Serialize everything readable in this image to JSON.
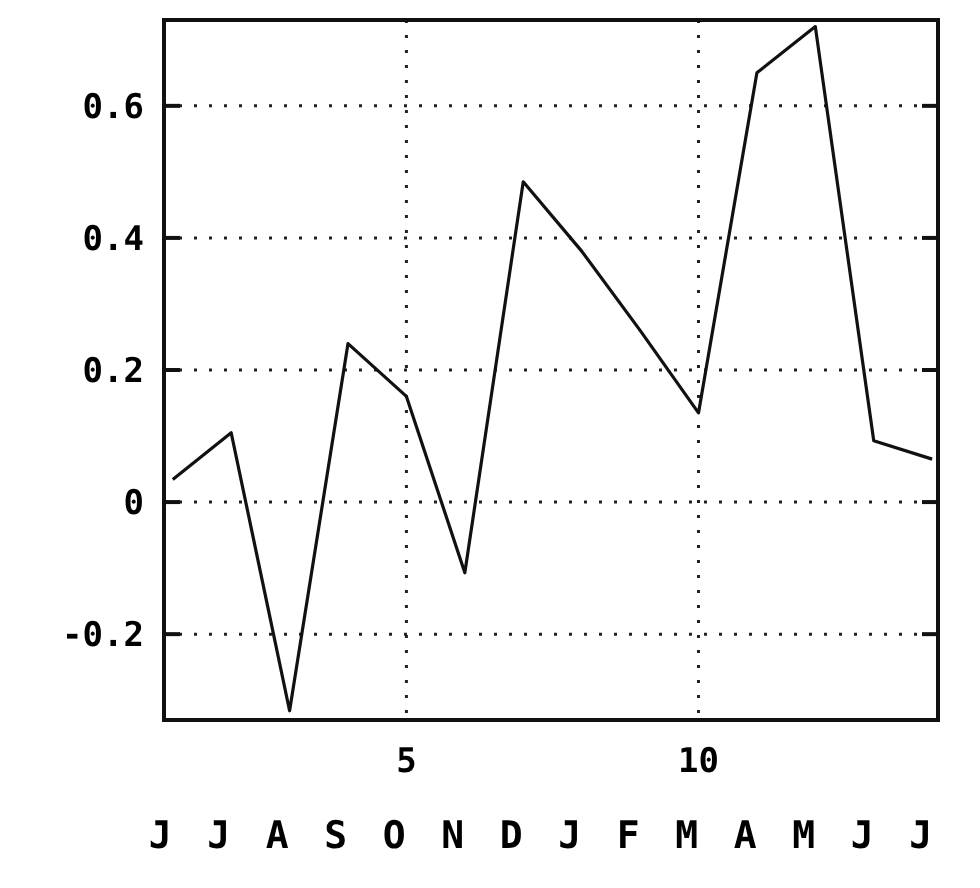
{
  "chart_data": {
    "type": "line",
    "x": [
      1,
      2,
      3,
      4,
      5,
      6,
      7,
      8,
      9,
      10,
      11,
      12,
      13,
      14
    ],
    "series": [
      {
        "color": "#111111",
        "values": [
          0.034,
          0.105,
          -0.316,
          0.24,
          0.16,
          -0.107,
          0.485,
          0.38,
          0.26,
          0.135,
          0.65,
          0.72,
          0.093,
          0.065
        ]
      }
    ],
    "xlim": [
      0.85,
      14.1
    ],
    "xticks": [
      5,
      10
    ],
    "ylim": [
      -0.33,
      0.73
    ],
    "yticks": [
      {
        "value": -0.2,
        "label": "-0.2"
      },
      {
        "value": 0,
        "label": "0"
      },
      {
        "value": 0.2,
        "label": "0.2"
      },
      {
        "value": 0.4,
        "label": "0.4"
      },
      {
        "value": 0.6,
        "label": "0.6"
      }
    ],
    "grid": true,
    "marker": "none",
    "line_style": "solid",
    "annotations": [
      "J J A S O N D J F M A M J J"
    ]
  }
}
